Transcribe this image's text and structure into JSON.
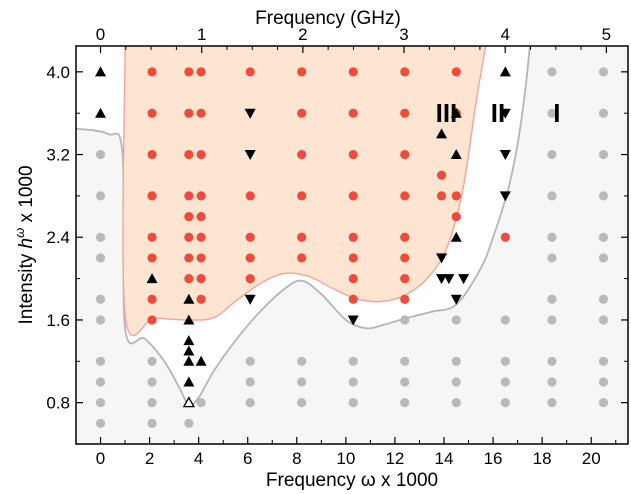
{
  "chart_data": {
    "type": "scatter",
    "title": "",
    "xlabel": "Frequency ω x 1000",
    "x2label": "Frequency (GHz)",
    "ylabel_main": "Intensity ",
    "ylabel_italic": "h",
    "ylabel_sup": "ω",
    "ylabel_suffix": " x 1000",
    "xlim": [
      -1.0,
      21.5
    ],
    "ylim": [
      0.4,
      4.25
    ],
    "x2_per_x": 0.2425,
    "xticks": [
      0,
      2,
      4,
      6,
      8,
      10,
      12,
      14,
      16,
      18,
      20
    ],
    "x2ticks": [
      0,
      1,
      2,
      3,
      4,
      5
    ],
    "yticks": [
      0.8,
      1.6,
      2.4,
      3.2,
      4.0
    ],
    "yticklabels": [
      "0.8",
      "1.6",
      "2.4",
      "3.2",
      "4.0"
    ],
    "grid": false,
    "colors": {
      "red": "#f04a3c",
      "gray": "#b9b9b9",
      "triangle": "#000000",
      "shaded_fill": "#fde5d2",
      "shaded_edge": "#f2a49a",
      "gray_fill": "#f6f6f6",
      "gray_edge": "#b5b5b5"
    },
    "regions": [
      {
        "label": "III",
        "x": 14.1,
        "y": 3.6
      },
      {
        "label": "II",
        "x": 16.2,
        "y": 3.6
      },
      {
        "label": "I",
        "x": 18.6,
        "y": 3.6
      }
    ],
    "boundary_upper": [
      [
        1.0,
        4.25
      ],
      [
        1.0,
        1.65
      ],
      [
        2.2,
        1.62
      ],
      [
        3.5,
        1.6
      ],
      [
        4.6,
        1.62
      ],
      [
        5.5,
        1.78
      ],
      [
        6.5,
        1.95
      ],
      [
        7.5,
        2.05
      ],
      [
        8.5,
        2.02
      ],
      [
        9.5,
        1.9
      ],
      [
        10.5,
        1.8
      ],
      [
        11.5,
        1.78
      ],
      [
        12.5,
        1.85
      ],
      [
        13.5,
        2.05
      ],
      [
        14.2,
        2.35
      ],
      [
        14.8,
        2.9
      ],
      [
        15.3,
        3.7
      ],
      [
        15.7,
        4.25
      ]
    ],
    "boundary_lower": [
      [
        -1.0,
        3.45
      ],
      [
        0.3,
        3.4
      ],
      [
        0.9,
        3.2
      ],
      [
        1.0,
        1.52
      ],
      [
        1.8,
        1.42
      ],
      [
        2.6,
        1.2
      ],
      [
        3.2,
        0.95
      ],
      [
        3.6,
        0.78
      ],
      [
        4.0,
        0.85
      ],
      [
        4.6,
        1.1
      ],
      [
        5.5,
        1.4
      ],
      [
        6.5,
        1.68
      ],
      [
        7.5,
        1.9
      ],
      [
        8.2,
        1.98
      ],
      [
        9.0,
        1.85
      ],
      [
        10.0,
        1.6
      ],
      [
        10.8,
        1.52
      ],
      [
        11.5,
        1.55
      ],
      [
        12.5,
        1.62
      ],
      [
        13.5,
        1.68
      ],
      [
        14.5,
        1.75
      ],
      [
        15.5,
        2.1
      ],
      [
        16.0,
        2.4
      ],
      [
        16.6,
        2.85
      ],
      [
        17.0,
        3.3
      ],
      [
        17.3,
        3.8
      ],
      [
        17.5,
        4.25
      ]
    ],
    "series": [
      {
        "marker": "red-circle",
        "points": [
          [
            2.1,
            4.0
          ],
          [
            2.1,
            3.6
          ],
          [
            2.1,
            3.2
          ],
          [
            2.1,
            2.8
          ],
          [
            2.1,
            2.4
          ],
          [
            2.1,
            2.2
          ],
          [
            2.1,
            1.8
          ],
          [
            2.1,
            1.6
          ],
          [
            3.6,
            4.0
          ],
          [
            3.6,
            3.6
          ],
          [
            3.6,
            3.2
          ],
          [
            3.6,
            2.8
          ],
          [
            3.6,
            2.6
          ],
          [
            3.6,
            2.4
          ],
          [
            3.6,
            2.2
          ],
          [
            3.6,
            2.0
          ],
          [
            4.1,
            4.0
          ],
          [
            4.1,
            3.6
          ],
          [
            4.1,
            3.2
          ],
          [
            4.1,
            2.8
          ],
          [
            4.1,
            2.6
          ],
          [
            4.1,
            2.4
          ],
          [
            4.1,
            2.2
          ],
          [
            4.1,
            2.0
          ],
          [
            4.1,
            1.8
          ],
          [
            6.1,
            4.0
          ],
          [
            6.1,
            2.8
          ],
          [
            6.1,
            2.4
          ],
          [
            6.1,
            2.2
          ],
          [
            6.1,
            2.0
          ],
          [
            8.2,
            4.0
          ],
          [
            8.2,
            3.6
          ],
          [
            8.2,
            3.2
          ],
          [
            8.2,
            2.8
          ],
          [
            8.2,
            2.4
          ],
          [
            8.2,
            2.2
          ],
          [
            10.3,
            4.0
          ],
          [
            10.3,
            3.6
          ],
          [
            10.3,
            3.2
          ],
          [
            10.3,
            2.8
          ],
          [
            10.3,
            2.4
          ],
          [
            10.3,
            2.2
          ],
          [
            10.3,
            2.0
          ],
          [
            10.3,
            1.8
          ],
          [
            12.4,
            4.0
          ],
          [
            12.4,
            3.6
          ],
          [
            12.4,
            3.2
          ],
          [
            12.4,
            2.8
          ],
          [
            12.4,
            2.4
          ],
          [
            12.4,
            2.2
          ],
          [
            12.4,
            2.0
          ],
          [
            12.4,
            1.8
          ],
          [
            13.9,
            2.8
          ],
          [
            13.9,
            3.0
          ],
          [
            14.5,
            4.0
          ],
          [
            14.5,
            3.6
          ],
          [
            14.5,
            2.8
          ],
          [
            14.5,
            2.6
          ],
          [
            16.5,
            2.4
          ]
        ]
      },
      {
        "marker": "gray-circle",
        "points": [
          [
            0.0,
            3.2
          ],
          [
            0.0,
            2.8
          ],
          [
            0.0,
            2.4
          ],
          [
            0.0,
            2.2
          ],
          [
            0.0,
            1.8
          ],
          [
            0.0,
            1.6
          ],
          [
            0.0,
            1.2
          ],
          [
            0.0,
            1.0
          ],
          [
            0.0,
            0.8
          ],
          [
            0.0,
            0.6
          ],
          [
            2.1,
            1.2
          ],
          [
            2.1,
            1.0
          ],
          [
            2.1,
            0.8
          ],
          [
            2.1,
            0.6
          ],
          [
            3.6,
            0.6
          ],
          [
            4.1,
            0.8
          ],
          [
            6.1,
            1.2
          ],
          [
            6.1,
            1.0
          ],
          [
            6.1,
            0.8
          ],
          [
            8.2,
            1.2
          ],
          [
            8.2,
            1.0
          ],
          [
            8.2,
            0.8
          ],
          [
            10.3,
            1.2
          ],
          [
            10.3,
            1.0
          ],
          [
            10.3,
            0.8
          ],
          [
            12.4,
            1.6
          ],
          [
            12.4,
            1.2
          ],
          [
            12.4,
            1.0
          ],
          [
            12.4,
            0.8
          ],
          [
            14.5,
            1.6
          ],
          [
            14.5,
            1.2
          ],
          [
            14.5,
            1.0
          ],
          [
            14.5,
            0.8
          ],
          [
            16.5,
            1.6
          ],
          [
            16.5,
            1.2
          ],
          [
            16.5,
            1.0
          ],
          [
            16.5,
            0.8
          ],
          [
            18.4,
            4.0
          ],
          [
            18.4,
            3.6
          ],
          [
            18.4,
            3.2
          ],
          [
            18.4,
            2.8
          ],
          [
            18.4,
            2.4
          ],
          [
            18.4,
            2.2
          ],
          [
            18.4,
            1.8
          ],
          [
            18.4,
            1.6
          ],
          [
            18.4,
            1.2
          ],
          [
            18.4,
            1.0
          ],
          [
            18.4,
            0.8
          ],
          [
            20.5,
            4.0
          ],
          [
            20.5,
            3.6
          ],
          [
            20.5,
            3.2
          ],
          [
            20.5,
            2.8
          ],
          [
            20.5,
            2.4
          ],
          [
            20.5,
            2.2
          ],
          [
            20.5,
            1.8
          ],
          [
            20.5,
            1.6
          ],
          [
            20.5,
            1.2
          ],
          [
            20.5,
            1.0
          ],
          [
            20.5,
            0.8
          ]
        ]
      },
      {
        "marker": "triangle-up",
        "points": [
          [
            0.0,
            4.0
          ],
          [
            0.0,
            3.6
          ],
          [
            2.1,
            2.0
          ],
          [
            3.6,
            1.8
          ],
          [
            3.6,
            1.6
          ],
          [
            3.6,
            1.4
          ],
          [
            3.6,
            1.3
          ],
          [
            3.6,
            1.2
          ],
          [
            4.1,
            1.2
          ],
          [
            3.6,
            1.0
          ],
          [
            13.9,
            3.4
          ],
          [
            14.5,
            3.6
          ],
          [
            14.5,
            3.2
          ],
          [
            14.5,
            2.4
          ],
          [
            16.5,
            4.0
          ]
        ]
      },
      {
        "marker": "triangle-down",
        "points": [
          [
            6.1,
            3.6
          ],
          [
            6.1,
            3.2
          ],
          [
            6.1,
            1.8
          ],
          [
            10.3,
            1.6
          ],
          [
            13.9,
            2.2
          ],
          [
            13.9,
            2.0
          ],
          [
            14.2,
            2.0
          ],
          [
            14.8,
            2.0
          ],
          [
            14.5,
            1.8
          ],
          [
            16.5,
            3.6
          ],
          [
            16.5,
            3.2
          ],
          [
            16.5,
            2.8
          ]
        ]
      },
      {
        "marker": "triangle-open",
        "points": [
          [
            3.6,
            0.8
          ]
        ]
      }
    ]
  }
}
